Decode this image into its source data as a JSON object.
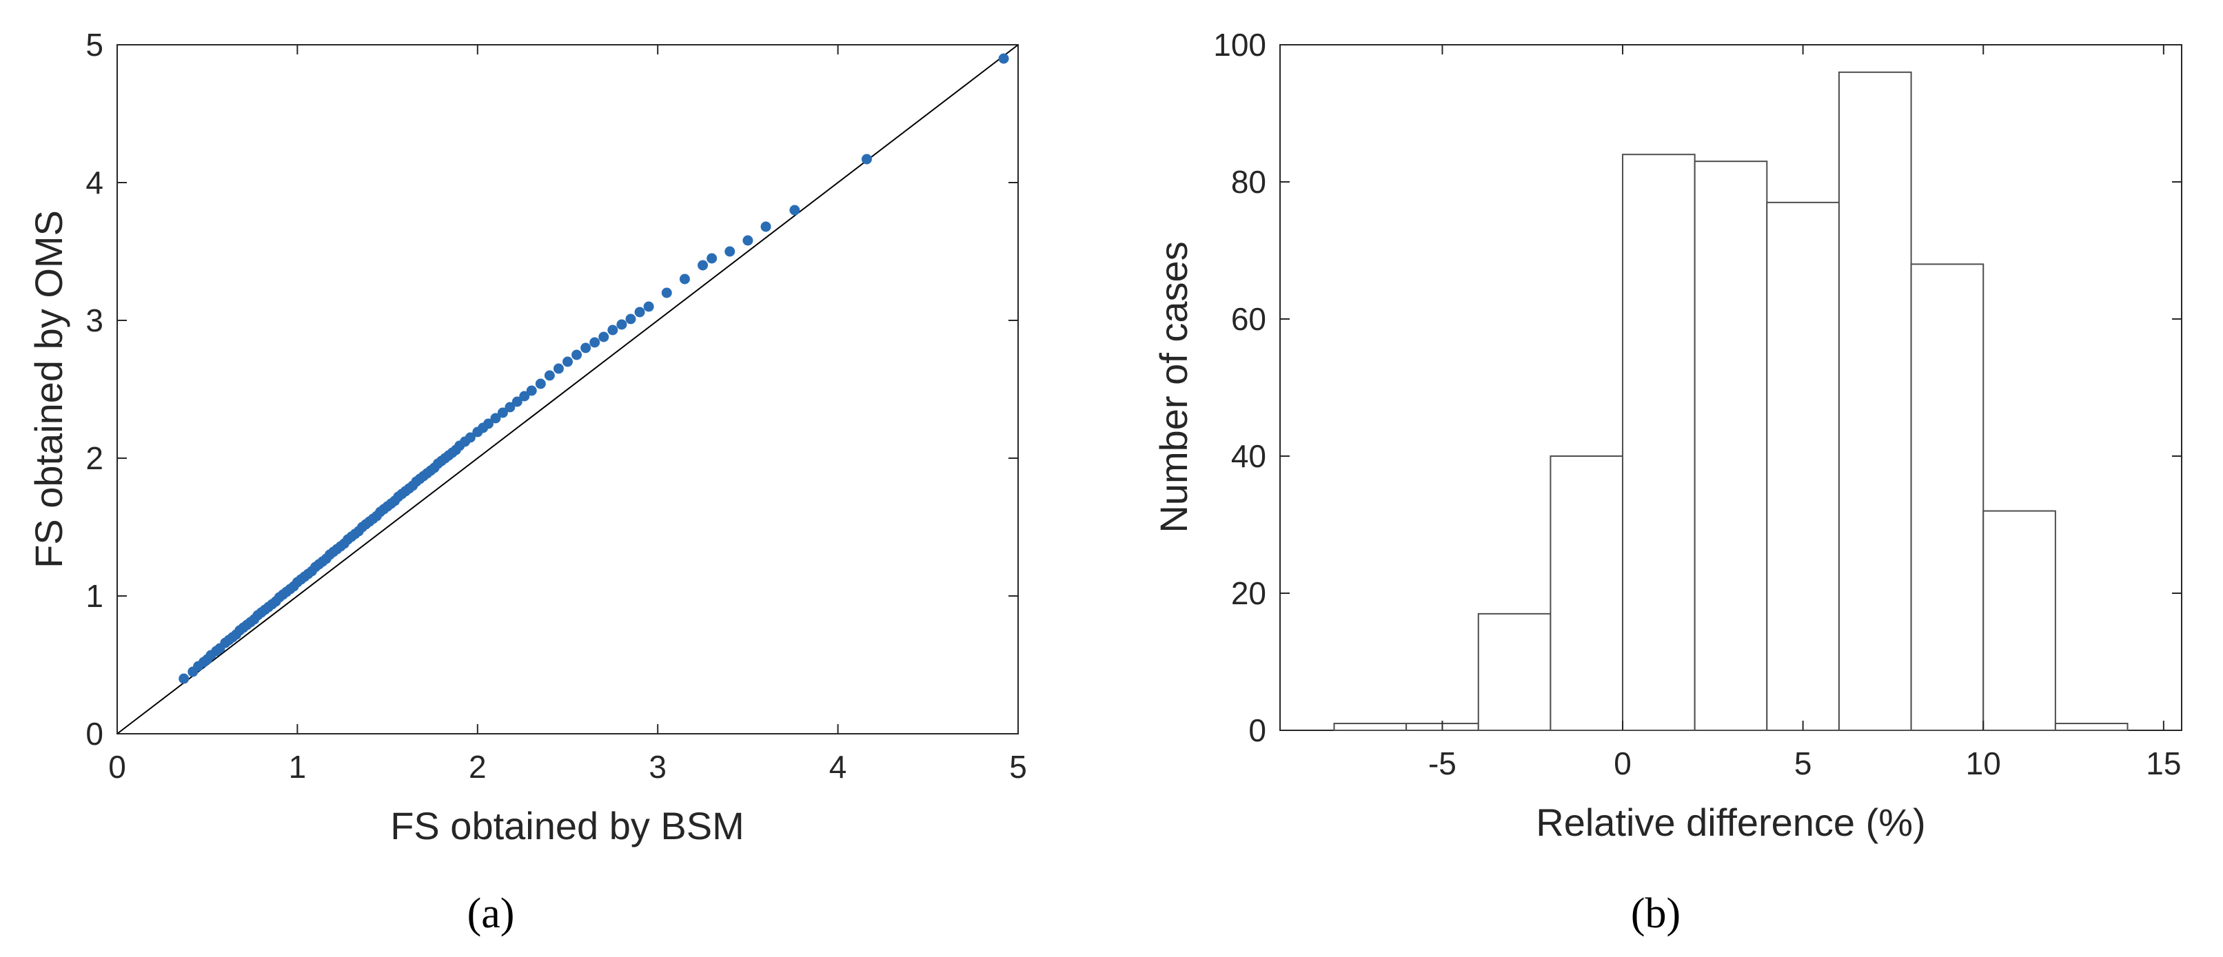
{
  "chart_data": [
    {
      "type": "scatter",
      "panel_label": "(a)",
      "xlabel": "FS obtained by BSM",
      "ylabel": "FS obtained by OMS",
      "xlim": [
        0,
        5
      ],
      "ylim": [
        0,
        5
      ],
      "xticks": [
        "0",
        "1",
        "2",
        "3",
        "4",
        "5"
      ],
      "yticks": [
        "0",
        "1",
        "2",
        "3",
        "4",
        "5"
      ],
      "reference_line": {
        "from": [
          0,
          0
        ],
        "to": [
          5,
          5
        ]
      },
      "grid": false,
      "marker_color": "#2a6db5",
      "points": {
        "x": [
          0.37,
          0.42,
          0.45,
          0.48,
          0.5,
          0.52,
          0.55,
          0.57,
          0.6,
          0.62,
          0.64,
          0.66,
          0.68,
          0.7,
          0.72,
          0.74,
          0.76,
          0.78,
          0.8,
          0.82,
          0.84,
          0.86,
          0.88,
          0.9,
          0.92,
          0.94,
          0.96,
          0.98,
          1.0,
          1.02,
          1.04,
          1.06,
          1.08,
          1.1,
          1.12,
          1.14,
          1.16,
          1.18,
          1.2,
          1.22,
          1.24,
          1.26,
          1.28,
          1.3,
          1.32,
          1.34,
          1.36,
          1.38,
          1.4,
          1.42,
          1.44,
          1.46,
          1.48,
          1.5,
          1.52,
          1.54,
          1.56,
          1.58,
          1.6,
          1.62,
          1.64,
          1.66,
          1.68,
          1.7,
          1.72,
          1.74,
          1.76,
          1.78,
          1.8,
          1.82,
          1.84,
          1.86,
          1.88,
          1.9,
          1.93,
          1.96,
          2.0,
          2.03,
          2.06,
          2.1,
          2.14,
          2.18,
          2.22,
          2.26,
          2.3,
          2.35,
          2.4,
          2.45,
          2.5,
          2.55,
          2.6,
          2.65,
          2.7,
          2.75,
          2.8,
          2.85,
          2.9,
          2.95,
          3.05,
          3.15,
          3.25,
          3.3,
          3.4,
          3.5,
          3.6,
          3.76,
          4.16,
          4.92
        ],
        "y": [
          0.4,
          0.45,
          0.49,
          0.52,
          0.54,
          0.57,
          0.6,
          0.62,
          0.66,
          0.68,
          0.7,
          0.72,
          0.75,
          0.77,
          0.79,
          0.81,
          0.83,
          0.86,
          0.88,
          0.9,
          0.92,
          0.94,
          0.96,
          0.99,
          1.01,
          1.03,
          1.05,
          1.07,
          1.1,
          1.12,
          1.14,
          1.16,
          1.18,
          1.21,
          1.23,
          1.25,
          1.27,
          1.3,
          1.32,
          1.34,
          1.36,
          1.38,
          1.41,
          1.43,
          1.45,
          1.47,
          1.5,
          1.52,
          1.54,
          1.56,
          1.58,
          1.61,
          1.63,
          1.65,
          1.67,
          1.69,
          1.72,
          1.74,
          1.76,
          1.78,
          1.8,
          1.83,
          1.85,
          1.87,
          1.89,
          1.91,
          1.93,
          1.96,
          1.98,
          2.0,
          2.02,
          2.04,
          2.06,
          2.09,
          2.12,
          2.15,
          2.19,
          2.22,
          2.25,
          2.29,
          2.33,
          2.37,
          2.41,
          2.45,
          2.49,
          2.54,
          2.6,
          2.65,
          2.7,
          2.75,
          2.8,
          2.84,
          2.88,
          2.93,
          2.97,
          3.01,
          3.06,
          3.1,
          3.2,
          3.3,
          3.4,
          3.45,
          3.5,
          3.58,
          3.68,
          3.8,
          4.17,
          4.9
        ]
      }
    },
    {
      "type": "bar",
      "subtype": "histogram",
      "panel_label": "(b)",
      "xlabel": "Relative difference (%)",
      "ylabel": "Number of cases",
      "xlim": [
        -9.5,
        15.5
      ],
      "ylim": [
        0,
        100
      ],
      "xticks": [
        "-5",
        "0",
        "5",
        "10",
        "15"
      ],
      "yticks": [
        "0",
        "20",
        "40",
        "60",
        "80",
        "100"
      ],
      "grid": false,
      "bin_edges": [
        -8,
        -6,
        -4,
        -2,
        0,
        2,
        4,
        6,
        8,
        10,
        12,
        14
      ],
      "values": [
        1,
        1,
        17,
        40,
        84,
        83,
        77,
        96,
        68,
        32,
        1
      ]
    }
  ]
}
